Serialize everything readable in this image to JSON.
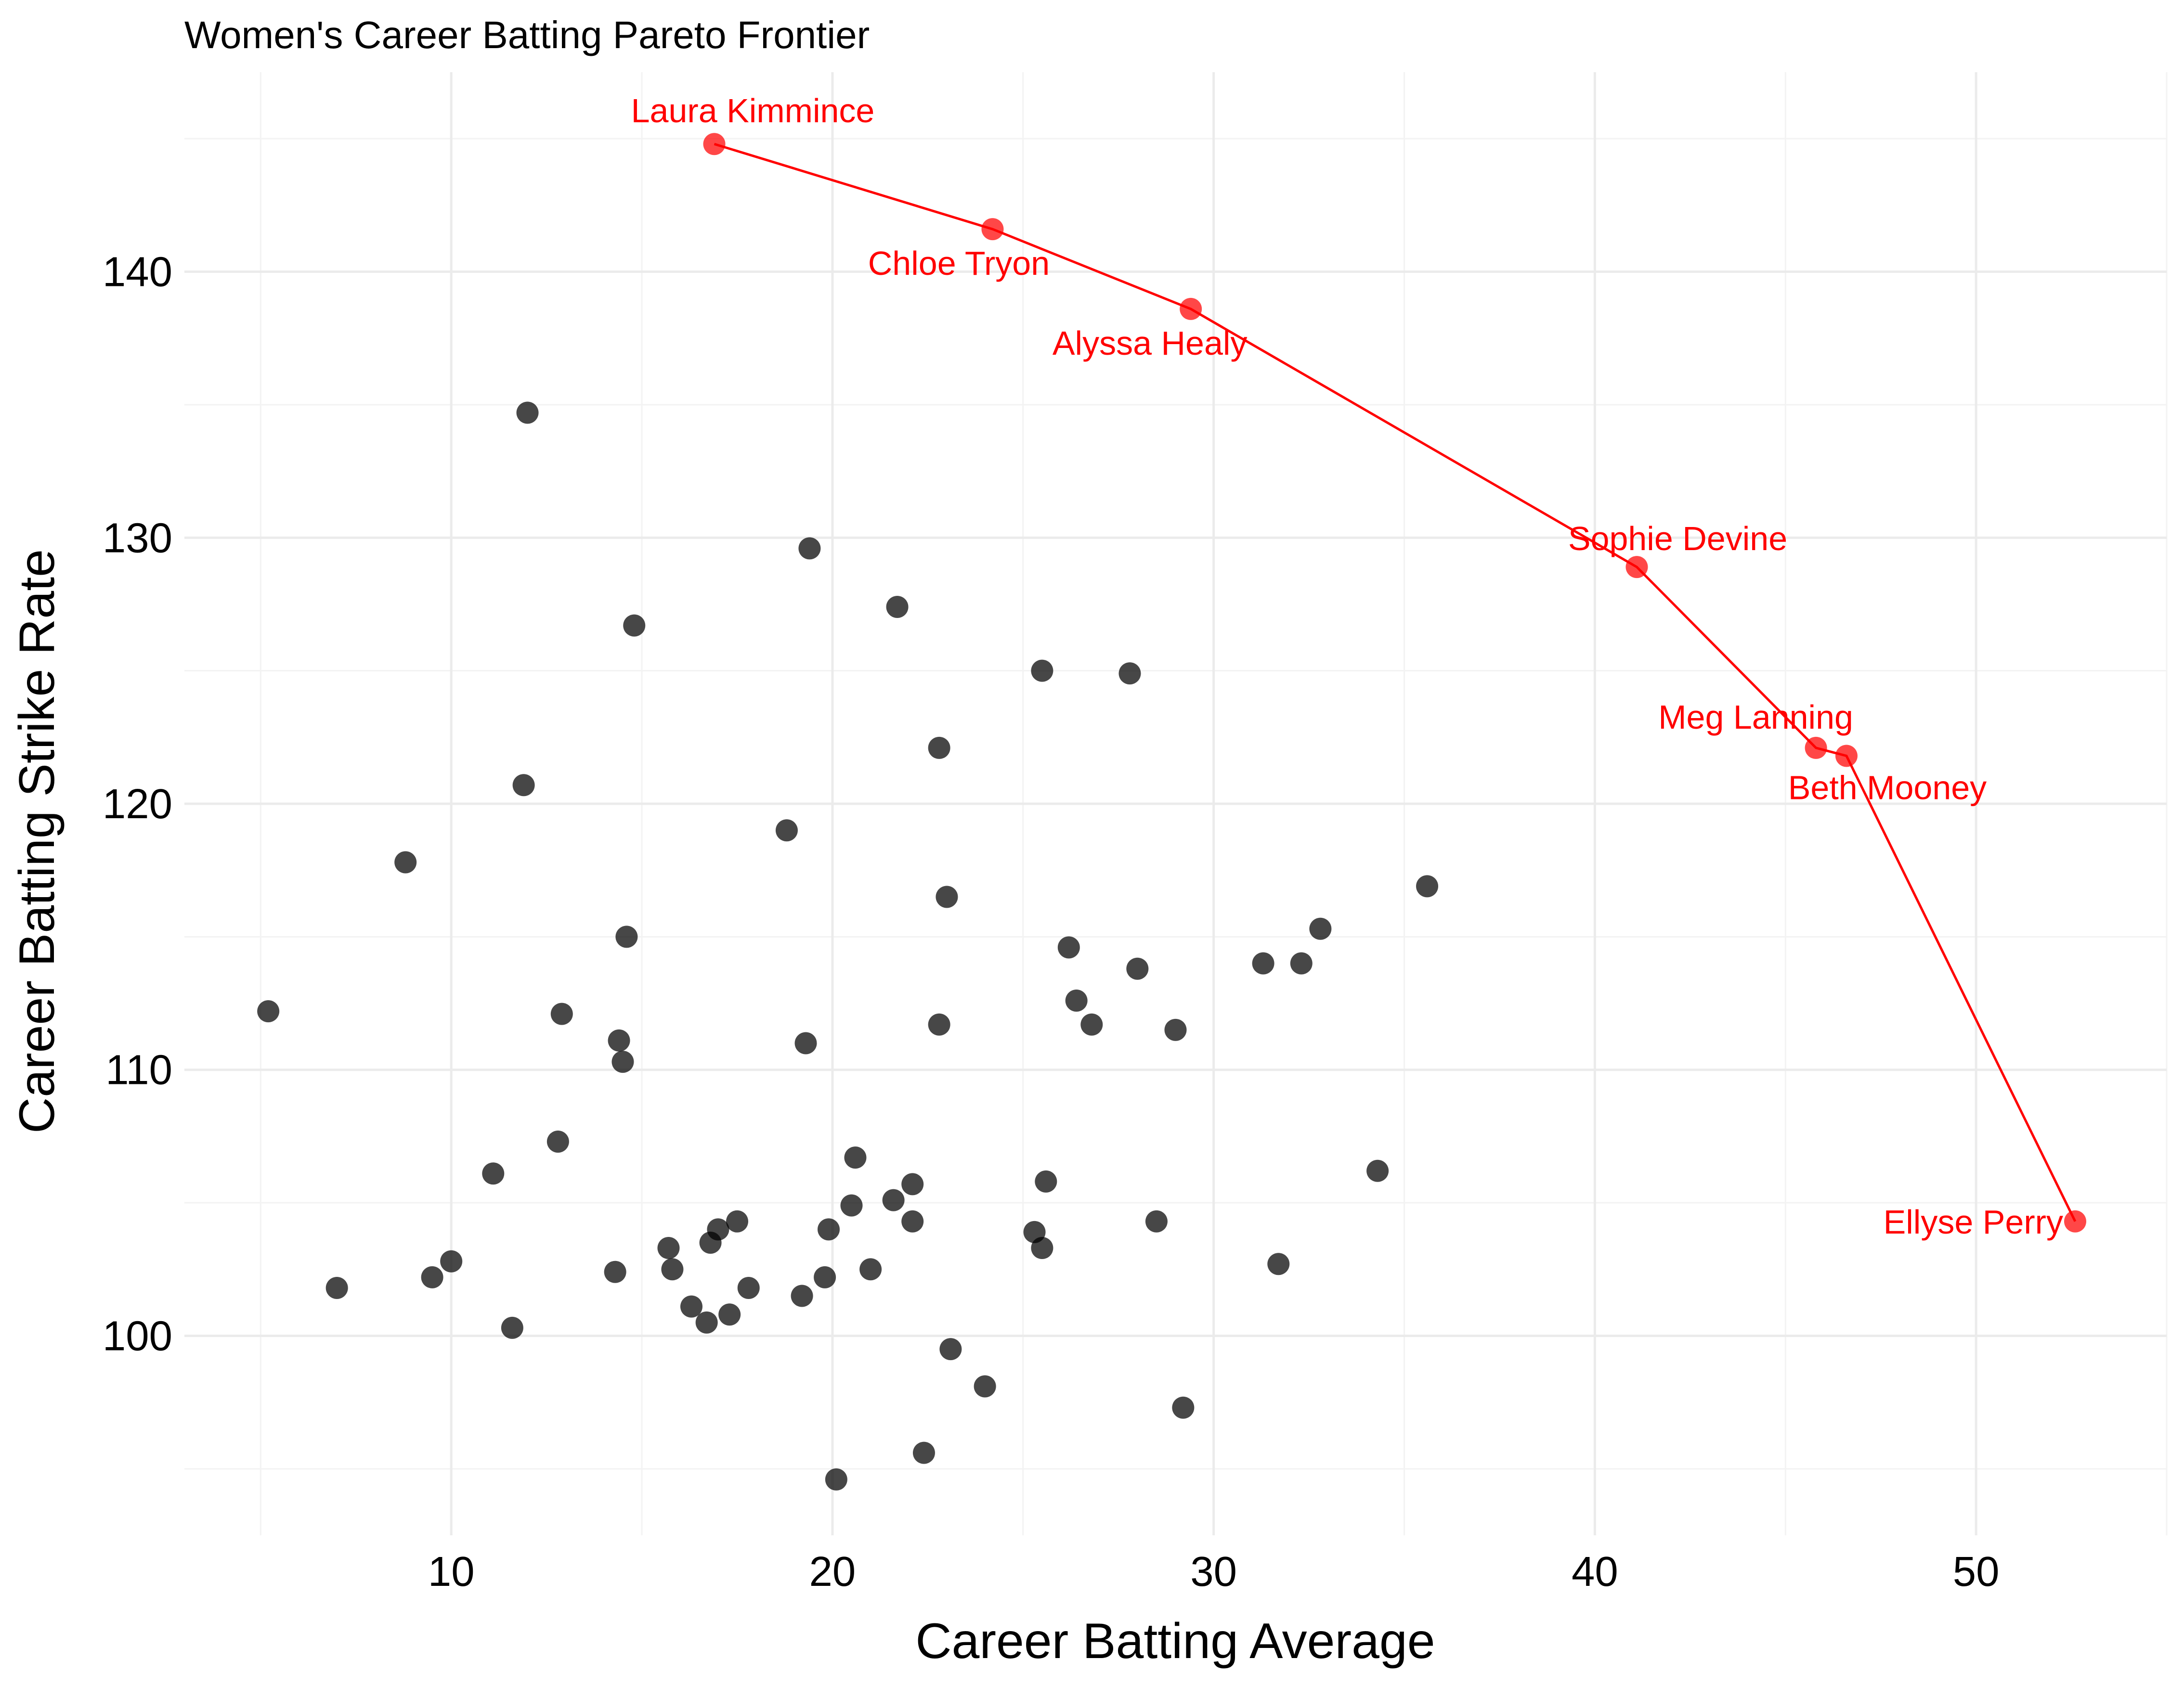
{
  "chart_data": {
    "type": "scatter",
    "title": "Women's Career Batting Pareto Frontier",
    "xlabel": "Career Batting Average",
    "ylabel": "Career Batting Strike Rate",
    "xlim": [
      3,
      55
    ],
    "ylim": [
      92.5,
      147.5
    ],
    "x_ticks": [
      10,
      20,
      30,
      40,
      50
    ],
    "y_ticks": [
      100,
      110,
      120,
      130,
      140
    ],
    "grid": true,
    "colors": {
      "points": "#000000",
      "frontier": "#ff0000"
    },
    "series": [
      {
        "points": [
          [
            5.2,
            112.2
          ],
          [
            7.0,
            101.8
          ],
          [
            8.8,
            117.8
          ],
          [
            9.5,
            102.2
          ],
          [
            10.0,
            102.8
          ],
          [
            11.1,
            106.1
          ],
          [
            11.6,
            100.3
          ],
          [
            11.9,
            120.7
          ],
          [
            12.0,
            134.7
          ],
          [
            12.8,
            107.3
          ],
          [
            12.9,
            112.1
          ],
          [
            14.3,
            102.4
          ],
          [
            14.4,
            111.1
          ],
          [
            14.5,
            110.3
          ],
          [
            14.6,
            115.0
          ],
          [
            14.8,
            126.7
          ],
          [
            15.7,
            103.3
          ],
          [
            15.8,
            102.5
          ],
          [
            16.3,
            101.1
          ],
          [
            16.7,
            100.5
          ],
          [
            16.8,
            103.5
          ],
          [
            17.0,
            104.0
          ],
          [
            17.3,
            100.8
          ],
          [
            17.5,
            104.3
          ],
          [
            17.8,
            101.8
          ],
          [
            18.8,
            119.0
          ],
          [
            19.2,
            101.5
          ],
          [
            19.3,
            111.0
          ],
          [
            19.4,
            129.6
          ],
          [
            19.8,
            102.2
          ],
          [
            19.9,
            104.0
          ],
          [
            20.1,
            94.6
          ],
          [
            20.5,
            104.9
          ],
          [
            20.6,
            106.7
          ],
          [
            21.0,
            102.5
          ],
          [
            21.6,
            105.1
          ],
          [
            21.7,
            127.4
          ],
          [
            22.1,
            104.3
          ],
          [
            22.1,
            105.7
          ],
          [
            22.4,
            95.6
          ],
          [
            22.8,
            122.1
          ],
          [
            22.8,
            111.7
          ],
          [
            23.0,
            116.5
          ],
          [
            23.1,
            99.5
          ],
          [
            24.0,
            98.1
          ],
          [
            25.3,
            103.9
          ],
          [
            25.5,
            125.0
          ],
          [
            25.5,
            103.3
          ],
          [
            25.6,
            105.8
          ],
          [
            26.2,
            114.6
          ],
          [
            26.4,
            112.6
          ],
          [
            26.8,
            111.7
          ],
          [
            27.8,
            124.9
          ],
          [
            28.0,
            113.8
          ],
          [
            28.5,
            104.3
          ],
          [
            29.0,
            111.5
          ],
          [
            29.2,
            97.3
          ],
          [
            31.3,
            114.0
          ],
          [
            31.7,
            102.7
          ],
          [
            32.3,
            114.0
          ],
          [
            32.8,
            115.3
          ],
          [
            34.3,
            106.2
          ],
          [
            35.6,
            116.9
          ]
        ]
      },
      {
        "name": "Pareto frontier",
        "points": [
          {
            "player": "Laura Kimmince",
            "x": 16.9,
            "y": 144.8
          },
          {
            "player": "Chloe Tryon",
            "x": 24.2,
            "y": 141.6
          },
          {
            "player": "Alyssa Healy",
            "x": 29.4,
            "y": 138.6
          },
          {
            "player": "Sophie Devine",
            "x": 41.1,
            "y": 128.9
          },
          {
            "player": "Meg Lanning",
            "x": 45.8,
            "y": 122.1
          },
          {
            "player": "Beth Mooney",
            "x": 46.6,
            "y": 121.8
          },
          {
            "player": "Ellyse Perry",
            "x": 52.6,
            "y": 104.3
          }
        ]
      }
    ]
  }
}
